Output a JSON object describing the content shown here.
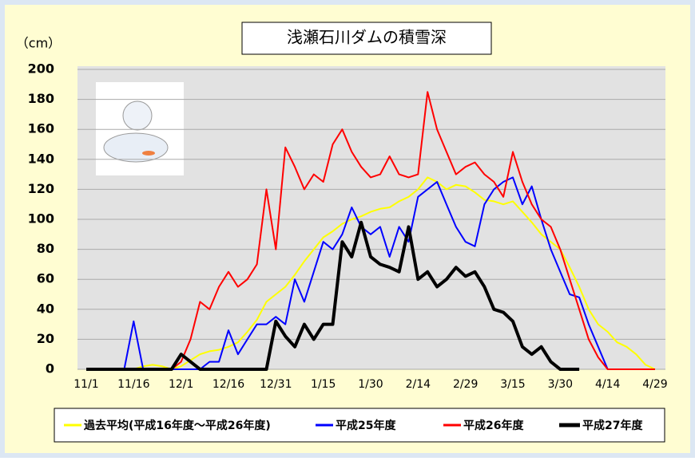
{
  "chart_data": {
    "type": "line",
    "title": "浅瀬石川ダムの積雪深",
    "y_label": "（cm）",
    "categories": [
      "11/1",
      null,
      null,
      null,
      null,
      "11/16",
      null,
      null,
      null,
      null,
      "12/1",
      null,
      null,
      null,
      null,
      "12/16",
      null,
      null,
      null,
      null,
      "12/31",
      null,
      null,
      null,
      null,
      "1/15",
      null,
      null,
      null,
      null,
      "1/30",
      null,
      null,
      null,
      null,
      "2/14",
      null,
      null,
      null,
      null,
      "2/29",
      null,
      null,
      null,
      null,
      "3/15",
      null,
      null,
      null,
      null,
      "3/30",
      null,
      null,
      null,
      null,
      "4/14",
      null,
      null,
      null,
      null,
      "4/29"
    ],
    "series": [
      {
        "name": "過去平均(平成16年度～平成26年度)",
        "color": "#ffff00",
        "width": 2,
        "values": [
          0,
          0,
          0,
          0,
          0,
          0,
          2,
          3,
          2,
          0,
          2,
          6,
          10,
          12,
          13,
          15,
          18,
          25,
          33,
          45,
          50,
          55,
          63,
          72,
          80,
          88,
          92,
          97,
          100,
          102,
          105,
          107,
          108,
          112,
          115,
          120,
          128,
          125,
          120,
          123,
          122,
          118,
          113,
          112,
          110,
          112,
          105,
          98,
          90,
          85,
          80,
          68,
          55,
          40,
          30,
          25,
          18,
          15,
          10,
          3,
          0
        ]
      },
      {
        "name": "平成25年度",
        "color": "#0000ff",
        "width": 2,
        "values": [
          0,
          0,
          0,
          0,
          0,
          32,
          0,
          0,
          0,
          0,
          0,
          0,
          0,
          5,
          5,
          26,
          10,
          20,
          30,
          30,
          35,
          30,
          60,
          45,
          65,
          85,
          80,
          90,
          108,
          95,
          90,
          95,
          75,
          95,
          85,
          115,
          120,
          125,
          110,
          95,
          85,
          82,
          110,
          120,
          125,
          128,
          110,
          122,
          100,
          80,
          65,
          50,
          48,
          30,
          15,
          0,
          null,
          null,
          null,
          null,
          null
        ]
      },
      {
        "name": "平成26年度",
        "color": "#ff0000",
        "width": 2,
        "values": [
          0,
          0,
          0,
          0,
          0,
          0,
          0,
          0,
          0,
          0,
          5,
          20,
          45,
          40,
          55,
          65,
          55,
          60,
          70,
          120,
          80,
          148,
          135,
          120,
          130,
          125,
          150,
          160,
          145,
          135,
          128,
          130,
          142,
          130,
          128,
          130,
          185,
          160,
          145,
          130,
          135,
          138,
          130,
          125,
          115,
          145,
          125,
          110,
          100,
          95,
          80,
          60,
          40,
          20,
          8,
          0,
          0,
          0,
          0,
          0,
          0
        ]
      },
      {
        "name": "平成27年度",
        "color": "#000000",
        "width": 4,
        "values": [
          0,
          0,
          0,
          0,
          0,
          0,
          0,
          0,
          0,
          0,
          10,
          5,
          0,
          0,
          0,
          0,
          0,
          0,
          0,
          0,
          32,
          22,
          15,
          30,
          20,
          30,
          30,
          85,
          75,
          98,
          75,
          70,
          68,
          65,
          95,
          60,
          65,
          55,
          60,
          68,
          62,
          65,
          55,
          40,
          38,
          32,
          15,
          10,
          15,
          5,
          0,
          0,
          0,
          null,
          null,
          null,
          null,
          null,
          null,
          null,
          null
        ]
      }
    ],
    "ylim": [
      0,
      200
    ],
    "yticks": [
      0,
      20,
      40,
      60,
      80,
      100,
      120,
      140,
      160,
      180,
      200
    ],
    "grid": true
  }
}
